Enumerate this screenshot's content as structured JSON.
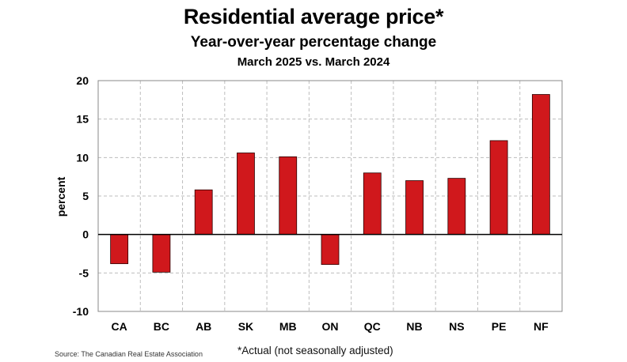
{
  "chart_data": {
    "type": "bar",
    "title": "Residential average price*",
    "subtitle": "Year-over-year percentage change",
    "subtitle2": "March 2025 vs. March 2024",
    "xlabel": "",
    "ylabel": "percent",
    "ylim": [
      -10,
      20
    ],
    "yticks": [
      20,
      15,
      10,
      5,
      0,
      -5,
      -10
    ],
    "grid": true,
    "categories": [
      "CA",
      "BC",
      "AB",
      "SK",
      "MB",
      "ON",
      "QC",
      "NB",
      "NS",
      "PE",
      "NF"
    ],
    "values": [
      -3.8,
      -4.9,
      5.8,
      10.6,
      10.1,
      -3.9,
      8.0,
      7.0,
      7.3,
      12.2,
      18.2
    ],
    "bar_color": "#d0181c"
  },
  "source": "Source: The Canadian Real Estate Association",
  "note": "*Actual (not seasonally adjusted)"
}
